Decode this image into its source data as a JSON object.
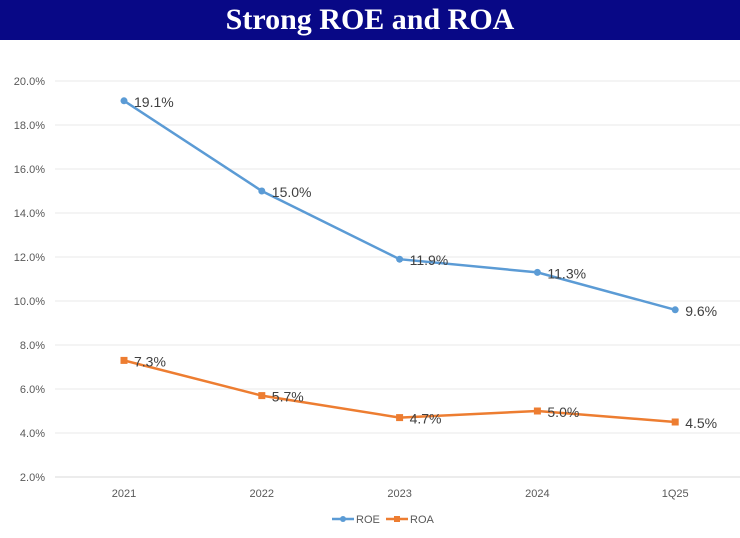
{
  "header": {
    "title": "Strong ROE and ROA",
    "background": "#080886"
  },
  "chart_data": {
    "type": "line",
    "title": "",
    "xlabel": "",
    "ylabel": "",
    "categories": [
      "2021",
      "2022",
      "2023",
      "2024",
      "1Q25"
    ],
    "ylim": [
      2.0,
      20.0
    ],
    "yticks": [
      "2.0%",
      "4.0%",
      "6.0%",
      "8.0%",
      "10.0%",
      "12.0%",
      "14.0%",
      "16.0%",
      "18.0%",
      "20.0%"
    ],
    "ytick_values": [
      2,
      4,
      6,
      8,
      10,
      12,
      14,
      16,
      18,
      20
    ],
    "grid": true,
    "legend": "bottom",
    "series": [
      {
        "name": "ROE",
        "values": [
          19.1,
          15.0,
          11.9,
          11.3,
          9.6
        ],
        "labels": [
          "19.1%",
          "15.0%",
          "11.9%",
          "11.3%",
          "9.6%"
        ],
        "color": "#5b9bd5",
        "marker": "circle"
      },
      {
        "name": "ROA",
        "values": [
          7.3,
          5.7,
          4.7,
          5.0,
          4.5
        ],
        "labels": [
          "7.3%",
          "5.7%",
          "4.7%",
          "5.0%",
          "4.5%"
        ],
        "color": "#ed7d31",
        "marker": "square"
      }
    ]
  }
}
